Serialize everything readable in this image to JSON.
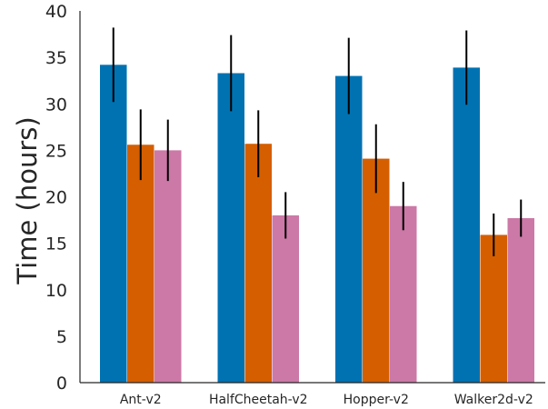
{
  "chart_data": {
    "type": "bar",
    "title": "",
    "xlabel": "",
    "ylabel": "Time (hours)",
    "ylim": [
      0,
      40
    ],
    "yticks": [
      "0",
      "5",
      "10",
      "15",
      "20",
      "25",
      "30",
      "35",
      "40"
    ],
    "grid": false,
    "legend": "none",
    "categories": [
      "Ant-v2",
      "HalfCheetah-v2",
      "Hopper-v2",
      "Walker2d-v2"
    ],
    "series": [
      {
        "color": "#0072b2",
        "values": [
          34.2,
          33.3,
          33.0,
          33.9
        ],
        "errors": [
          4.0,
          4.1,
          4.1,
          4.0
        ]
      },
      {
        "color": "#d55e00",
        "values": [
          25.6,
          25.7,
          24.1,
          15.9
        ],
        "errors": [
          3.8,
          3.6,
          3.7,
          2.3
        ]
      },
      {
        "color": "#cc79a7",
        "values": [
          25.0,
          18.0,
          19.0,
          17.7
        ],
        "errors": [
          3.3,
          2.5,
          2.6,
          2.0
        ]
      }
    ]
  }
}
